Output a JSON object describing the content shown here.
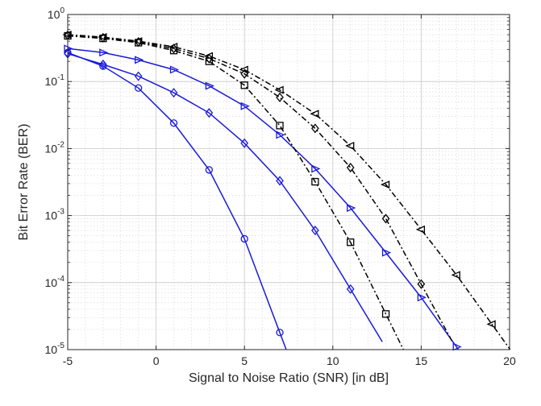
{
  "chart_data": {
    "type": "line",
    "title": "",
    "xlabel": "Signal to Noise Ratio (SNR) [in dB]",
    "ylabel": "Bit Error Rate (BER)",
    "xlim": [
      -5,
      20
    ],
    "ylim": [
      1e-05,
      1
    ],
    "y_scale": "log",
    "grid": true,
    "minor_grid": true,
    "x_ticks": [
      -5,
      0,
      5,
      10,
      15,
      20
    ],
    "x_tick_labels": [
      "-5",
      "0",
      "5",
      "10",
      "15",
      "20"
    ],
    "y_ticks": [
      1,
      0.1,
      0.01,
      0.001,
      0.0001,
      1e-05
    ],
    "y_tick_labels": [
      {
        "base": "10",
        "exp": "0"
      },
      {
        "base": "10",
        "exp": "-1"
      },
      {
        "base": "10",
        "exp": "-2"
      },
      {
        "base": "10",
        "exp": "-3"
      },
      {
        "base": "10",
        "exp": "-4"
      },
      {
        "base": "10",
        "exp": "-5"
      }
    ],
    "series": [
      {
        "color": "#1a1adb",
        "line": "solid",
        "marker": "circle",
        "x": [
          -5,
          -3,
          -1,
          1,
          3,
          5,
          7
        ],
        "values": [
          0.27,
          0.17,
          0.08,
          0.024,
          0.0048,
          0.00045,
          1.8e-05
        ]
      },
      {
        "color": "#1a1adb",
        "line": "solid",
        "marker": "diamond",
        "x": [
          -5,
          -3,
          -1,
          1,
          3,
          5,
          7,
          9,
          11
        ],
        "values": [
          0.26,
          0.18,
          0.12,
          0.068,
          0.034,
          0.012,
          0.0033,
          0.0006,
          8e-05
        ]
      },
      {
        "color": "#1a1adb",
        "line": "solid",
        "marker": "triangle-right",
        "x": [
          -5,
          -3,
          -1,
          1,
          3,
          5,
          7,
          9,
          11,
          13,
          15,
          17
        ],
        "values": [
          0.31,
          0.27,
          0.21,
          0.15,
          0.086,
          0.043,
          0.016,
          0.005,
          0.0013,
          0.00028,
          6e-05,
          1.1e-05
        ]
      },
      {
        "color": "#000000",
        "line": "dashdot",
        "marker": "square",
        "x": [
          -5,
          -3,
          -1,
          1,
          3,
          5,
          7,
          9,
          11,
          13
        ],
        "values": [
          0.48,
          0.44,
          0.38,
          0.29,
          0.2,
          0.088,
          0.022,
          0.0032,
          0.0004,
          3.4e-05
        ]
      },
      {
        "color": "#000000",
        "line": "dashdot",
        "marker": "diamond",
        "x": [
          -5,
          -3,
          -1,
          1,
          3,
          5,
          7,
          9,
          11,
          13,
          15
        ],
        "values": [
          0.49,
          0.45,
          0.39,
          0.31,
          0.22,
          0.13,
          0.058,
          0.02,
          0.0052,
          0.0009,
          9.5e-05
        ]
      },
      {
        "color": "#000000",
        "line": "dashdot",
        "marker": "triangle-left",
        "x": [
          -5,
          -3,
          -1,
          1,
          3,
          5,
          7,
          9,
          11,
          13,
          15,
          17,
          19
        ],
        "values": [
          0.5,
          0.46,
          0.4,
          0.33,
          0.24,
          0.15,
          0.075,
          0.033,
          0.011,
          0.0029,
          0.00062,
          0.00013,
          2.4e-05
        ]
      }
    ]
  }
}
